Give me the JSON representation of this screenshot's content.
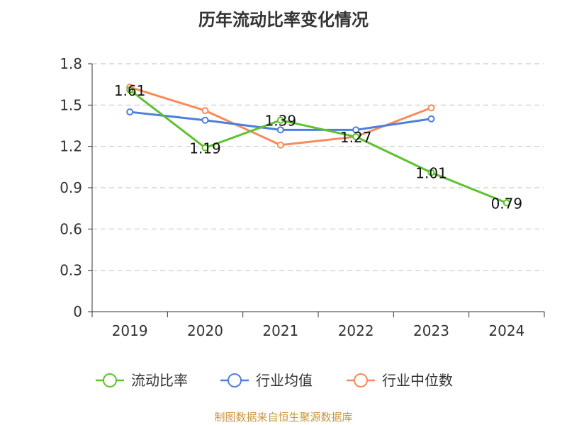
{
  "chart_data": {
    "type": "line",
    "title": "历年流动比率变化情况",
    "categories": [
      "2019",
      "2020",
      "2021",
      "2022",
      "2023",
      "2024"
    ],
    "ylim": [
      0,
      1.8
    ],
    "yticks": [
      "0",
      "0.3",
      "0.6",
      "0.9",
      "1.2",
      "1.5",
      "1.8"
    ],
    "grid": true,
    "legend_position": "bottom",
    "series": [
      {
        "name": "流动比率",
        "color": "#5ec22f",
        "values": [
          1.61,
          1.19,
          1.39,
          1.27,
          1.01,
          0.79
        ],
        "labels": [
          "1.61",
          "1.19",
          "1.39",
          "1.27",
          "1.01",
          "0.79"
        ]
      },
      {
        "name": "行业均值",
        "color": "#4f7fdc",
        "values": [
          1.45,
          1.39,
          1.32,
          1.32,
          1.4,
          null
        ]
      },
      {
        "name": "行业中位数",
        "color": "#f58b5a",
        "values": [
          1.63,
          1.46,
          1.21,
          1.27,
          1.48,
          null
        ]
      }
    ]
  },
  "footer": "制图数据来自恒生聚源数据库"
}
